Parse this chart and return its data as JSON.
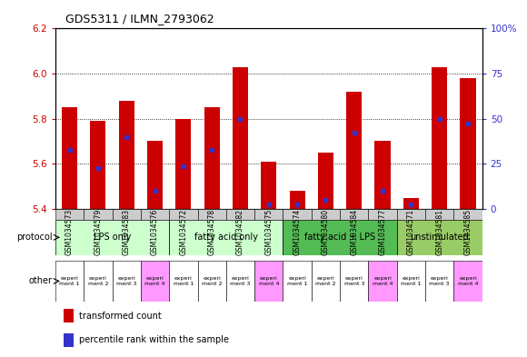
{
  "title": "GDS5311 / ILMN_2793062",
  "samples": [
    "GSM1034573",
    "GSM1034579",
    "GSM1034583",
    "GSM1034576",
    "GSM1034572",
    "GSM1034578",
    "GSM1034582",
    "GSM1034575",
    "GSM1034574",
    "GSM1034580",
    "GSM1034584",
    "GSM1034577",
    "GSM1034571",
    "GSM1034581",
    "GSM1034585"
  ],
  "bar_values": [
    5.85,
    5.79,
    5.88,
    5.7,
    5.8,
    5.85,
    6.03,
    5.61,
    5.48,
    5.65,
    5.92,
    5.7,
    5.45,
    6.03,
    5.98
  ],
  "blue_positions": [
    5.66,
    5.58,
    5.72,
    5.48,
    5.59,
    5.66,
    5.8,
    5.42,
    5.42,
    5.44,
    5.74,
    5.48,
    5.42,
    5.8,
    5.78
  ],
  "bar_bottom": 5.4,
  "ylim_left": [
    5.4,
    6.2
  ],
  "ylim_right": [
    0,
    100
  ],
  "yticks_left": [
    5.4,
    5.6,
    5.8,
    6.0,
    6.2
  ],
  "yticks_right": [
    0,
    25,
    50,
    75,
    100
  ],
  "ytick_labels_right": [
    "0",
    "25",
    "50",
    "75",
    "100%"
  ],
  "grid_values": [
    5.6,
    5.8,
    6.0
  ],
  "bar_color": "#cc0000",
  "blue_color": "#3333cc",
  "protocol_groups": [
    {
      "label": "LPS only",
      "start": 0,
      "end": 4,
      "color": "#ccffcc"
    },
    {
      "label": "fatty acid only",
      "start": 4,
      "end": 8,
      "color": "#ccffcc"
    },
    {
      "label": "fatty acid + LPS",
      "start": 8,
      "end": 12,
      "color": "#55bb55"
    },
    {
      "label": "unstimulated",
      "start": 12,
      "end": 15,
      "color": "#99cc66"
    }
  ],
  "other_groups": [
    {
      "label": "experi\nment 1",
      "col": 0,
      "color": "#ffffff"
    },
    {
      "label": "experi\nment 2",
      "col": 1,
      "color": "#ffffff"
    },
    {
      "label": "experi\nment 3",
      "col": 2,
      "color": "#ffffff"
    },
    {
      "label": "experi\nment 4",
      "col": 3,
      "color": "#ff99ff"
    },
    {
      "label": "experi\nment 1",
      "col": 4,
      "color": "#ffffff"
    },
    {
      "label": "experi\nment 2",
      "col": 5,
      "color": "#ffffff"
    },
    {
      "label": "experi\nment 3",
      "col": 6,
      "color": "#ffffff"
    },
    {
      "label": "experi\nment 4",
      "col": 7,
      "color": "#ff99ff"
    },
    {
      "label": "experi\nment 1",
      "col": 8,
      "color": "#ffffff"
    },
    {
      "label": "experi\nment 2",
      "col": 9,
      "color": "#ffffff"
    },
    {
      "label": "experi\nment 3",
      "col": 10,
      "color": "#ffffff"
    },
    {
      "label": "experi\nment 4",
      "col": 11,
      "color": "#ff99ff"
    },
    {
      "label": "experi\nment 1",
      "col": 12,
      "color": "#ffffff"
    },
    {
      "label": "experi\nment 3",
      "col": 13,
      "color": "#ffffff"
    },
    {
      "label": "experi\nment 4",
      "col": 14,
      "color": "#ff99ff"
    }
  ],
  "legend_items": [
    {
      "label": "transformed count",
      "color": "#cc0000"
    },
    {
      "label": "percentile rank within the sample",
      "color": "#3333cc"
    }
  ],
  "bar_width": 0.55,
  "xtick_bg": "#cccccc",
  "axes_bg": "#ffffff",
  "fig_bg": "#ffffff",
  "left_label_color": "#cc0000",
  "right_label_color": "#3333cc"
}
